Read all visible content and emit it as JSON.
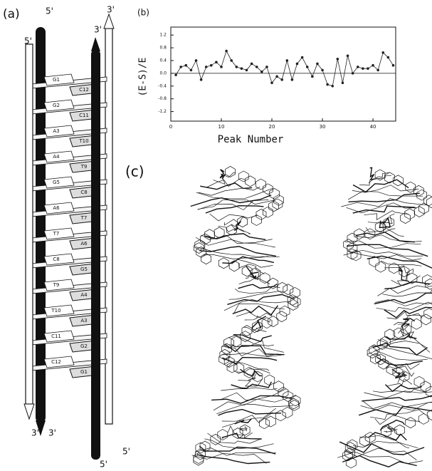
{
  "chart_data": {
    "type": "line",
    "title": "(b)",
    "xlabel": "Peak Number",
    "ylabel": "(E-S)/E",
    "x": [
      1,
      2,
      3,
      4,
      5,
      6,
      7,
      8,
      9,
      10,
      11,
      12,
      13,
      14,
      15,
      16,
      17,
      18,
      19,
      20,
      21,
      22,
      23,
      24,
      25,
      26,
      27,
      28,
      29,
      30,
      31,
      32,
      33,
      34,
      35,
      36,
      37,
      38,
      39,
      40,
      41,
      42,
      43,
      44
    ],
    "values": [
      -0.05,
      0.2,
      0.25,
      0.1,
      0.4,
      -0.2,
      0.2,
      0.25,
      0.35,
      0.2,
      0.7,
      0.4,
      0.2,
      0.15,
      0.1,
      0.3,
      0.2,
      0.05,
      0.2,
      -0.3,
      -0.1,
      -0.2,
      0.4,
      -0.2,
      0.3,
      0.5,
      0.2,
      -0.1,
      0.3,
      0.1,
      -0.35,
      -0.4,
      0.45,
      -0.3,
      0.55,
      0.0,
      0.2,
      0.15,
      0.15,
      0.25,
      0.1,
      0.65,
      0.5,
      0.25
    ],
    "color": "#222",
    "markers": true,
    "xlim": [
      0,
      44.5
    ],
    "ylim": [
      -1.5,
      1.45
    ],
    "xticks": [
      0,
      10,
      20,
      30,
      40
    ],
    "yticks": [
      -1.2,
      -0.8,
      -0.4,
      {
        "value": 0,
        "label": "0.0"
      },
      0.4,
      0.8,
      1.2
    ]
  },
  "panel_a": {
    "label": "(a)",
    "strand_ends_top": [
      "5'",
      "5'",
      "3'",
      "3'"
    ],
    "strand_ends_bottom": [
      "3'",
      "3'",
      "5'",
      "5'"
    ],
    "pairs": [
      [
        "G1",
        "C12"
      ],
      [
        "G2",
        "C11"
      ],
      [
        "A3",
        "T10"
      ],
      [
        "A4",
        "T9"
      ],
      [
        "G5",
        "C8"
      ],
      [
        "A6",
        "T7"
      ],
      [
        "T7",
        "A6"
      ],
      [
        "C8",
        "G5"
      ],
      [
        "T9",
        "A4"
      ],
      [
        "T10",
        "A3"
      ],
      [
        "C11",
        "G2"
      ],
      [
        "C12",
        "G1"
      ]
    ]
  },
  "panel_c": {
    "label": "(c)"
  }
}
